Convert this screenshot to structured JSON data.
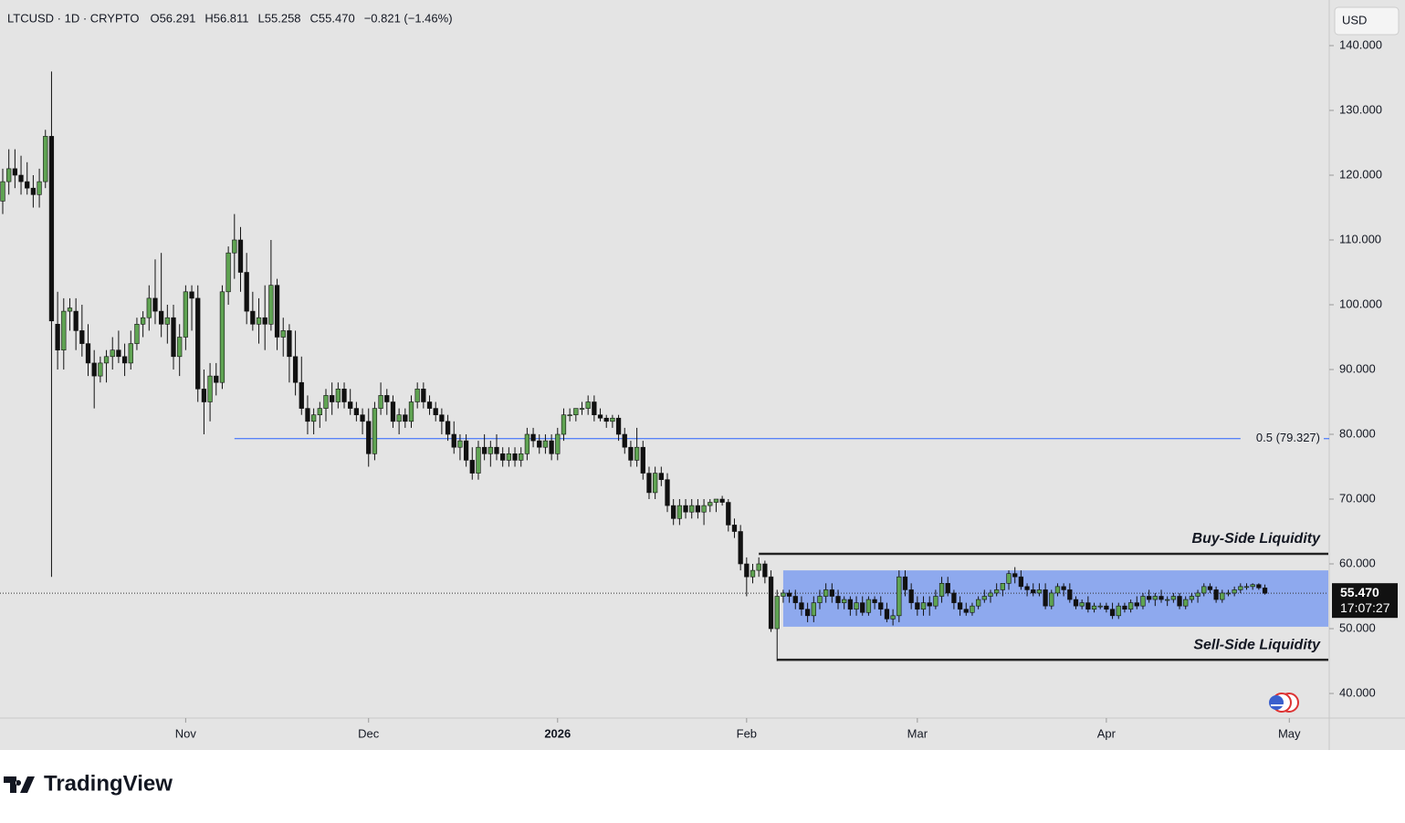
{
  "chart_data": {
    "type": "candlestick",
    "header": {
      "symbol": "LTCUSD · 1D · CRYPTO",
      "ohlc": [
        "O56.291",
        "H56.811",
        "L55.258",
        "C55.470"
      ],
      "change": "−0.821 (−1.46%)"
    },
    "currency": "USD",
    "up_color": "#5fa352",
    "down_color": "#111111",
    "candles": [
      [
        116,
        121,
        114,
        119
      ],
      [
        119,
        124,
        117,
        121
      ],
      [
        121,
        124,
        118,
        120
      ],
      [
        120,
        123,
        117,
        119
      ],
      [
        119,
        122,
        117,
        118
      ],
      [
        118,
        120,
        115,
        117
      ],
      [
        117,
        121,
        115,
        119
      ],
      [
        119,
        127,
        118,
        126
      ],
      [
        126,
        136,
        58,
        97.5
      ],
      [
        97,
        102,
        90,
        93
      ],
      [
        93,
        101,
        90,
        99
      ],
      [
        99,
        101,
        96,
        99.5
      ],
      [
        99,
        101,
        93,
        96
      ],
      [
        96,
        100,
        92,
        94
      ],
      [
        94,
        97,
        89,
        91
      ],
      [
        91,
        93,
        84,
        89
      ],
      [
        89,
        92,
        88,
        91
      ],
      [
        91,
        93,
        88,
        92
      ],
      [
        92,
        95,
        90,
        93
      ],
      [
        93,
        96,
        91,
        92
      ],
      [
        92,
        94,
        89,
        91
      ],
      [
        91,
        96,
        90,
        94
      ],
      [
        94,
        98,
        93,
        97
      ],
      [
        97,
        99,
        95,
        98
      ],
      [
        98,
        103,
        96,
        101
      ],
      [
        101,
        107,
        97,
        99
      ],
      [
        99,
        108,
        95,
        97
      ],
      [
        97,
        100,
        94,
        98
      ],
      [
        98,
        100,
        90,
        92
      ],
      [
        92,
        97,
        89,
        95
      ],
      [
        95,
        103,
        93,
        102
      ],
      [
        102,
        103,
        96,
        101
      ],
      [
        101,
        103,
        85,
        87
      ],
      [
        87,
        90,
        80,
        85
      ],
      [
        85,
        91,
        82,
        89
      ],
      [
        89,
        91,
        86,
        88
      ],
      [
        88,
        103,
        87,
        102
      ],
      [
        102,
        109,
        100,
        108
      ],
      [
        108,
        114,
        104,
        110
      ],
      [
        110,
        112,
        102,
        105
      ],
      [
        105,
        108,
        97,
        99
      ],
      [
        99,
        102,
        96,
        97
      ],
      [
        97,
        101,
        94,
        98
      ],
      [
        98,
        103,
        93,
        97
      ],
      [
        97,
        110,
        96,
        103
      ],
      [
        103,
        104,
        93,
        95
      ],
      [
        95,
        98,
        92,
        96
      ],
      [
        96,
        97,
        88,
        92
      ],
      [
        92,
        96,
        86,
        88
      ],
      [
        88,
        92,
        83,
        84
      ],
      [
        84,
        86,
        80,
        82
      ],
      [
        82,
        84,
        80,
        83
      ],
      [
        83,
        85,
        81,
        84
      ],
      [
        84,
        87,
        82,
        86
      ],
      [
        86,
        88,
        83,
        85
      ],
      [
        85,
        88,
        84,
        87
      ],
      [
        87,
        88,
        84,
        85
      ],
      [
        85,
        87,
        83,
        84
      ],
      [
        84,
        85,
        82,
        83
      ],
      [
        83,
        84,
        80,
        82
      ],
      [
        82,
        84,
        75,
        77
      ],
      [
        77,
        85,
        76,
        84
      ],
      [
        84,
        88,
        83,
        86
      ],
      [
        86,
        87,
        83,
        85
      ],
      [
        85,
        86,
        81,
        82
      ],
      [
        82,
        84,
        80,
        83
      ],
      [
        83,
        84,
        81,
        82
      ],
      [
        82,
        86,
        81,
        85
      ],
      [
        85,
        88,
        84,
        87
      ],
      [
        87,
        88,
        84,
        85
      ],
      [
        85,
        86,
        83,
        84
      ],
      [
        84,
        85,
        82,
        83
      ],
      [
        83,
        84,
        80,
        82
      ],
      [
        82,
        83,
        79,
        80
      ],
      [
        80,
        82,
        77,
        78
      ],
      [
        78,
        80,
        76,
        79
      ],
      [
        79,
        80,
        75,
        76
      ],
      [
        76,
        78,
        73,
        74
      ],
      [
        74,
        79,
        73,
        78
      ],
      [
        78,
        80,
        76,
        77
      ],
      [
        77,
        79,
        75,
        78
      ],
      [
        78,
        80,
        76,
        77
      ],
      [
        77,
        78,
        75,
        76
      ],
      [
        76,
        78,
        75,
        77
      ],
      [
        77,
        78,
        75,
        76
      ],
      [
        76,
        78,
        75,
        77
      ],
      [
        77,
        81,
        76,
        80
      ],
      [
        80,
        81,
        78,
        79
      ],
      [
        79,
        80,
        77,
        78
      ],
      [
        78,
        80,
        77,
        79
      ],
      [
        79,
        80,
        76,
        77
      ],
      [
        77,
        81,
        76,
        80
      ],
      [
        80,
        84,
        79,
        83
      ],
      [
        83,
        84,
        82,
        83
      ],
      [
        83,
        84,
        82,
        84
      ],
      [
        84,
        85,
        83,
        84
      ],
      [
        84,
        86,
        83,
        85
      ],
      [
        85,
        86,
        82,
        83
      ],
      [
        83,
        84,
        82,
        82.5
      ],
      [
        82.5,
        83,
        81,
        82
      ],
      [
        82,
        83,
        81,
        82.5
      ],
      [
        82.5,
        83,
        79,
        80
      ],
      [
        80,
        81,
        77,
        78
      ],
      [
        78,
        79,
        75,
        76
      ],
      [
        76,
        81,
        75,
        78
      ],
      [
        78,
        79,
        73,
        74
      ],
      [
        74,
        75,
        70,
        71
      ],
      [
        71,
        75,
        70,
        74
      ],
      [
        74,
        75,
        72,
        73
      ],
      [
        73,
        74,
        68,
        69
      ],
      [
        69,
        70,
        66,
        67
      ],
      [
        67,
        70,
        66,
        69
      ],
      [
        69,
        70,
        67,
        68
      ],
      [
        68,
        70,
        67,
        69
      ],
      [
        69,
        70,
        67,
        68
      ],
      [
        68,
        70,
        66,
        69
      ],
      [
        69,
        70,
        68,
        69.5
      ],
      [
        69.5,
        70,
        68,
        70
      ],
      [
        70,
        70.5,
        69,
        69.5
      ],
      [
        69.5,
        70,
        65,
        66
      ],
      [
        66,
        67,
        64,
        65
      ],
      [
        65,
        66,
        59,
        60
      ],
      [
        60,
        61,
        55,
        58
      ],
      [
        58,
        60,
        57,
        59
      ],
      [
        59,
        61,
        58,
        60
      ],
      [
        60,
        60.5,
        57,
        58
      ],
      [
        58,
        59,
        49.5,
        50
      ],
      [
        50,
        56,
        45,
        55
      ],
      [
        55,
        56,
        54,
        55.5
      ],
      [
        55.5,
        56,
        54,
        55
      ],
      [
        55,
        56,
        53,
        54
      ],
      [
        54,
        55,
        52,
        53
      ],
      [
        53,
        54,
        51,
        52
      ],
      [
        52,
        55,
        51,
        54
      ],
      [
        54,
        56,
        53,
        55
      ],
      [
        55,
        57,
        54,
        56
      ],
      [
        56,
        57,
        54,
        55
      ],
      [
        55,
        56,
        53,
        54
      ],
      [
        54,
        55,
        53,
        54.5
      ],
      [
        54.5,
        55,
        52,
        53
      ],
      [
        53,
        55,
        52,
        54
      ],
      [
        54,
        55,
        52,
        52.5
      ],
      [
        52.5,
        55,
        52,
        54.5
      ],
      [
        54.5,
        55,
        53,
        54
      ],
      [
        54,
        55,
        52,
        53
      ],
      [
        53,
        54,
        51,
        51.5
      ],
      [
        51.5,
        53,
        50.5,
        52
      ],
      [
        52,
        59,
        51,
        58
      ],
      [
        58,
        59,
        55,
        56
      ],
      [
        56,
        57,
        53,
        54
      ],
      [
        54,
        55,
        52,
        53
      ],
      [
        53,
        55,
        52,
        54
      ],
      [
        54,
        55,
        52,
        53.5
      ],
      [
        53.5,
        56,
        53,
        55
      ],
      [
        55,
        58,
        54,
        57
      ],
      [
        57,
        58,
        55,
        55.5
      ],
      [
        55.5,
        56,
        53,
        54
      ],
      [
        54,
        55,
        52,
        53
      ],
      [
        53,
        54,
        52,
        52.5
      ],
      [
        52.5,
        54,
        52,
        53.5
      ],
      [
        53.5,
        55,
        53,
        54.5
      ],
      [
        54.5,
        56,
        54,
        55
      ],
      [
        55,
        56,
        54,
        55.5
      ],
      [
        55.5,
        57,
        55,
        56
      ],
      [
        56,
        57,
        55,
        57
      ],
      [
        57,
        59,
        56,
        58.5
      ],
      [
        58.5,
        59.5,
        57,
        58
      ],
      [
        58,
        59,
        56,
        56.5
      ],
      [
        56.5,
        57,
        55,
        56
      ],
      [
        56,
        57,
        55,
        55.5
      ],
      [
        55.5,
        57,
        55,
        56
      ],
      [
        56,
        57,
        53,
        53.5
      ],
      [
        53.5,
        56,
        53,
        55.5
      ],
      [
        55.5,
        57,
        55,
        56.5
      ],
      [
        56.5,
        57,
        55,
        56
      ],
      [
        56,
        57,
        54,
        54.5
      ],
      [
        54.5,
        55,
        53,
        53.5
      ],
      [
        53.5,
        54.5,
        53,
        54
      ],
      [
        54,
        55,
        52.5,
        53
      ],
      [
        53,
        54,
        52.5,
        53.5
      ],
      [
        53.5,
        54,
        53,
        53.5
      ],
      [
        53.5,
        54,
        52.5,
        53
      ],
      [
        53,
        54,
        51.5,
        52
      ],
      [
        52,
        54,
        51.5,
        53.5
      ],
      [
        53.5,
        54,
        52.5,
        53
      ],
      [
        53,
        54.5,
        52.5,
        54
      ],
      [
        54,
        55,
        53,
        53.5
      ],
      [
        53.5,
        55.5,
        53,
        55
      ],
      [
        55,
        56,
        54,
        54.5
      ],
      [
        54.5,
        55.5,
        53.5,
        55
      ],
      [
        55,
        56,
        54,
        54.5
      ],
      [
        54.5,
        55,
        53.5,
        54.5
      ],
      [
        54.5,
        55.5,
        54,
        55
      ],
      [
        55,
        55.5,
        53,
        53.5
      ],
      [
        53.5,
        55,
        53,
        54.5
      ],
      [
        54.5,
        55.5,
        54,
        55
      ],
      [
        55,
        56,
        54,
        55.5
      ],
      [
        55.5,
        57,
        55,
        56.5
      ],
      [
        56.5,
        57,
        55.5,
        56
      ],
      [
        56,
        56.5,
        54,
        54.5
      ],
      [
        54.5,
        56,
        54,
        55.5
      ],
      [
        55.5,
        56,
        55,
        55.5
      ],
      [
        55.5,
        56.5,
        55,
        56
      ],
      [
        56,
        57,
        55.5,
        56.5
      ],
      [
        56.5,
        57,
        56,
        56.5
      ],
      [
        56.5,
        57,
        56,
        56.8
      ],
      [
        56.8,
        57,
        56,
        56.3
      ],
      [
        56.291,
        56.811,
        55.258,
        55.47
      ]
    ],
    "xlim": [
      -0.45,
      217.4
    ],
    "ylim": [
      36.2,
      147.04
    ],
    "xticks": [
      {
        "value": 30,
        "label": "Nov"
      },
      {
        "value": 60,
        "label": "Dec"
      },
      {
        "value": 91,
        "label": "2026"
      },
      {
        "value": 122,
        "label": "Feb"
      },
      {
        "value": 150,
        "label": "Mar"
      },
      {
        "value": 181,
        "label": "Apr"
      },
      {
        "value": 211,
        "label": "May"
      }
    ],
    "yticks": [
      {
        "value": 40,
        "label": "40.000"
      },
      {
        "value": 50,
        "label": "50.000"
      },
      {
        "value": 60,
        "label": "60.000"
      },
      {
        "value": 70,
        "label": "70.000"
      },
      {
        "value": 80,
        "label": "80.000"
      },
      {
        "value": 90,
        "label": "90.000"
      },
      {
        "value": 100,
        "label": "100.000"
      },
      {
        "value": 110,
        "label": "110.000"
      },
      {
        "value": 120,
        "label": "120.000"
      },
      {
        "value": 130,
        "label": "130.000"
      },
      {
        "value": 140,
        "label": "140.000"
      }
    ],
    "fib_level": {
      "value": 79.327,
      "label": "0.5 (79.327)",
      "from": 38,
      "to": 203,
      "color": "#2962ff"
    },
    "range_zone": {
      "x": [
        128,
        217.4
      ],
      "y": [
        50.3,
        59.0
      ],
      "color": "#7f9ff0"
    },
    "buy_side": {
      "value": 61.55,
      "from": 124,
      "label": "Buy-Side Liquidity"
    },
    "sell_side": {
      "value": 45.2,
      "from": 127,
      "label": "Sell-Side Liquidity"
    },
    "last_price": {
      "value": 55.47,
      "label": "55.470",
      "countdown": "17:07:27"
    },
    "brand": "TradingView"
  }
}
